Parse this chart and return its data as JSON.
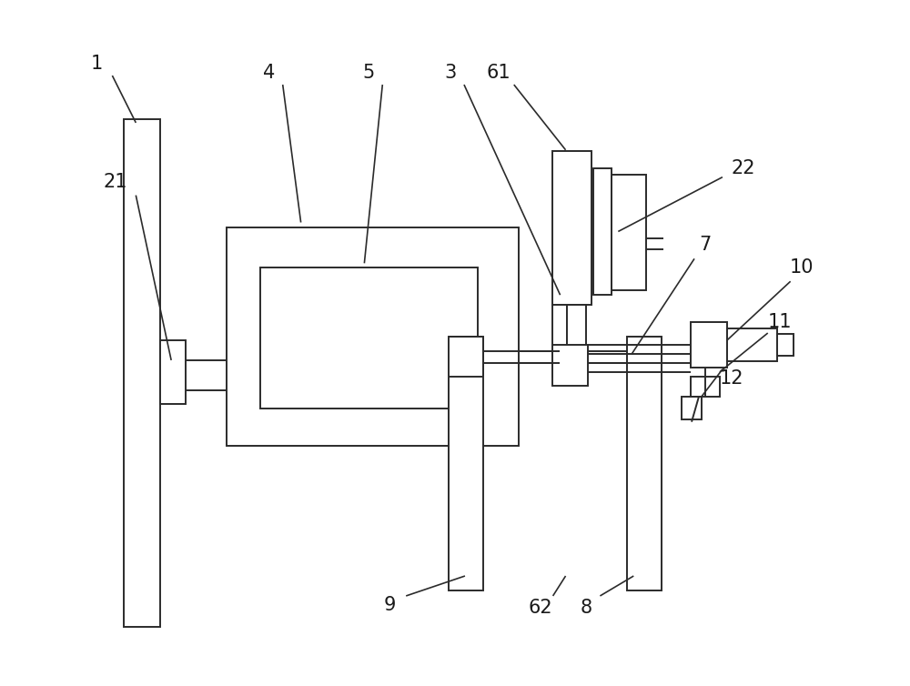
{
  "bg_color": "#ffffff",
  "line_color": "#2b2b2b",
  "fig_width": 10.0,
  "fig_height": 7.54,
  "label_color": "#1a1a1a",
  "label_fs": 15
}
